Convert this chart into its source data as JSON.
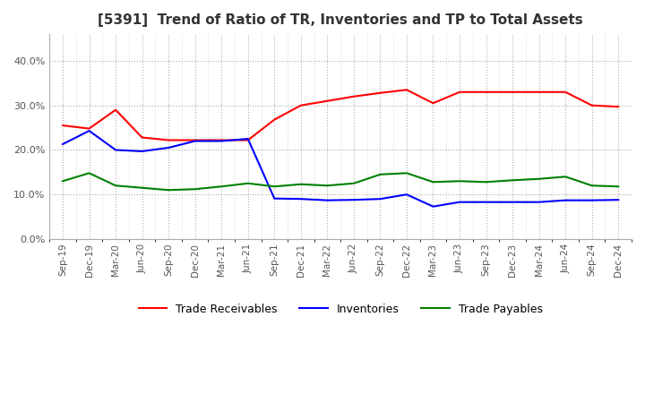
{
  "title": "[5391]  Trend of Ratio of TR, Inventories and TP to Total Assets",
  "x_labels": [
    "Sep-19",
    "Dec-19",
    "Mar-20",
    "Jun-20",
    "Sep-20",
    "Dec-20",
    "Mar-21",
    "Jun-21",
    "Sep-21",
    "Dec-21",
    "Mar-22",
    "Jun-22",
    "Sep-22",
    "Dec-22",
    "Mar-23",
    "Jun-23",
    "Sep-23",
    "Dec-23",
    "Mar-24",
    "Jun-24",
    "Sep-24",
    "Dec-24"
  ],
  "trade_receivables": [
    0.255,
    0.248,
    0.29,
    0.228,
    0.222,
    0.222,
    0.222,
    0.222,
    0.268,
    0.3,
    0.31,
    0.32,
    0.328,
    0.335,
    0.305,
    0.33,
    0.33,
    0.33,
    0.33,
    0.33,
    0.3,
    0.297
  ],
  "inventories": [
    0.213,
    0.243,
    0.2,
    0.197,
    0.205,
    0.22,
    0.22,
    0.225,
    0.091,
    0.09,
    0.087,
    0.088,
    0.09,
    0.1,
    0.073,
    0.083,
    0.083,
    0.083,
    0.083,
    0.087,
    0.087,
    0.088
  ],
  "trade_payables": [
    0.13,
    0.148,
    0.12,
    0.115,
    0.11,
    0.112,
    0.118,
    0.125,
    0.118,
    0.123,
    0.12,
    0.125,
    0.145,
    0.148,
    0.128,
    0.13,
    0.128,
    0.132,
    0.135,
    0.14,
    0.12,
    0.118
  ],
  "line_colors": {
    "trade_receivables": "#ff0000",
    "inventories": "#0000ff",
    "trade_payables": "#008000"
  },
  "ylim": [
    0.0,
    0.46
  ],
  "yticks": [
    0.0,
    0.1,
    0.2,
    0.3,
    0.4
  ],
  "background_color": "#ffffff",
  "grid_color": "#aaaaaa",
  "title_fontsize": 11,
  "legend_labels": [
    "Trade Receivables",
    "Inventories",
    "Trade Payables"
  ]
}
